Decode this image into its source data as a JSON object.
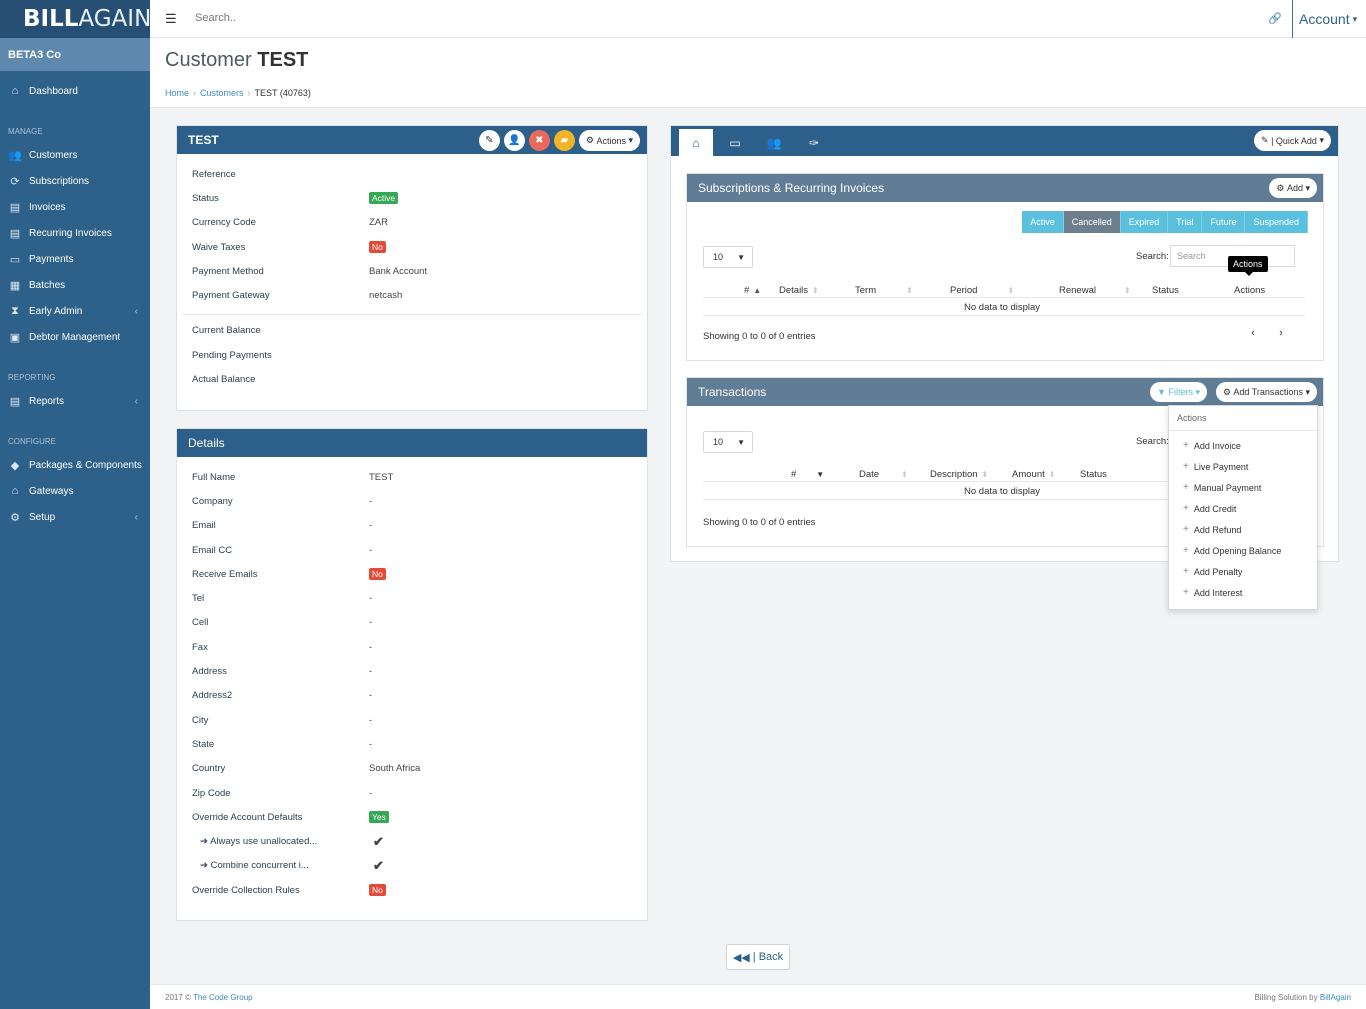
{
  "brand": {
    "name_bold": "BILL",
    "name_light": "AGAIN"
  },
  "company": "BETA3 Co",
  "sidebar": {
    "dashboard": "Dashboard",
    "section_manage": "MANAGE",
    "manage": [
      "Customers",
      "Subscriptions",
      "Invoices",
      "Recurring Invoices",
      "Payments",
      "Batches",
      "Early Admin",
      "Debtor Management"
    ],
    "section_reporting": "REPORTING",
    "reports": "Reports",
    "section_configure": "CONFIGURE",
    "configure": [
      "Packages & Components",
      "Gateways",
      "Setup"
    ]
  },
  "topbar": {
    "search_placeholder": "Search..",
    "account": "Account"
  },
  "header": {
    "title_light": "Customer",
    "title_bold": "TEST"
  },
  "breadcrumb": [
    "Home",
    "Customers",
    "TEST (40763)"
  ],
  "customer_panel": {
    "title": "TEST",
    "actions_label": "Actions",
    "rows": [
      {
        "k": "Reference",
        "v": ""
      },
      {
        "k": "Status",
        "v": "Active"
      },
      {
        "k": "Currency Code",
        "v": "ZAR"
      },
      {
        "k": "Waive Taxes",
        "v": "No"
      },
      {
        "k": "Payment Method",
        "v": "Bank Account"
      },
      {
        "k": "Payment Gateway",
        "v": "netcash"
      }
    ],
    "balances": [
      "Current Balance",
      "Pending Payments",
      "Actual Balance"
    ]
  },
  "details_panel": {
    "title": "Details",
    "rows": [
      {
        "k": "Full Name",
        "v": "TEST"
      },
      {
        "k": "Company",
        "v": "-"
      },
      {
        "k": "Email",
        "v": "-"
      },
      {
        "k": "Email CC",
        "v": "-"
      },
      {
        "k": "Receive Emails",
        "v": "No"
      },
      {
        "k": "Tel",
        "v": "-"
      },
      {
        "k": "Cell",
        "v": "-"
      },
      {
        "k": "Fax",
        "v": "-"
      },
      {
        "k": "Address",
        "v": "-"
      },
      {
        "k": "Address2",
        "v": "-"
      },
      {
        "k": "City",
        "v": "-"
      },
      {
        "k": "State",
        "v": "-"
      },
      {
        "k": "Country",
        "v": "South Africa"
      },
      {
        "k": "Zip Code",
        "v": "-"
      },
      {
        "k": "Override Account Defaults",
        "v": "Yes"
      },
      {
        "k": "Always use unallocated...",
        "v": "✔"
      },
      {
        "k": "Combine concurrent i...",
        "v": "✔"
      },
      {
        "k": "Override Collection Rules",
        "v": "No"
      }
    ]
  },
  "right_panel": {
    "quick_add": "| Quick Add",
    "subs": {
      "title": "Subscriptions & Recurring Invoices",
      "add": "Add",
      "filters": [
        "Active",
        "Cancelled",
        "Expired",
        "Trial",
        "Future",
        "Suspended"
      ],
      "page_size": "10",
      "search_label": "Search:",
      "search_placeholder": "Search",
      "tooltip": "Actions",
      "columns": [
        "#",
        "Details",
        "Term",
        "Period",
        "Renewal",
        "Status",
        "Actions"
      ],
      "no_data": "No data to display",
      "showing": "Showing 0 to 0 of 0 entries"
    },
    "trans": {
      "title": "Transactions",
      "filters": "Filters",
      "add_transactions": "Add Transactions",
      "page_size": "10",
      "search_label": "Search:",
      "columns": [
        "#",
        "Date",
        "Description",
        "Amount",
        "Status"
      ],
      "no_data": "No data to display",
      "showing": "Showing 0 to 0 of 0 entries"
    },
    "dropdown": {
      "header": "Actions",
      "items": [
        "Add Invoice",
        "Live Payment",
        "Manual Payment",
        "Add Credit",
        "Add Refund",
        "Add Opening Balance",
        "Add Penalty",
        "Add Interest"
      ]
    }
  },
  "back": "| Back",
  "footer": {
    "left": "2017 ©",
    "left_link": "The Code Group",
    "right": "Billing Solution by",
    "right_link": "BillAgain"
  }
}
